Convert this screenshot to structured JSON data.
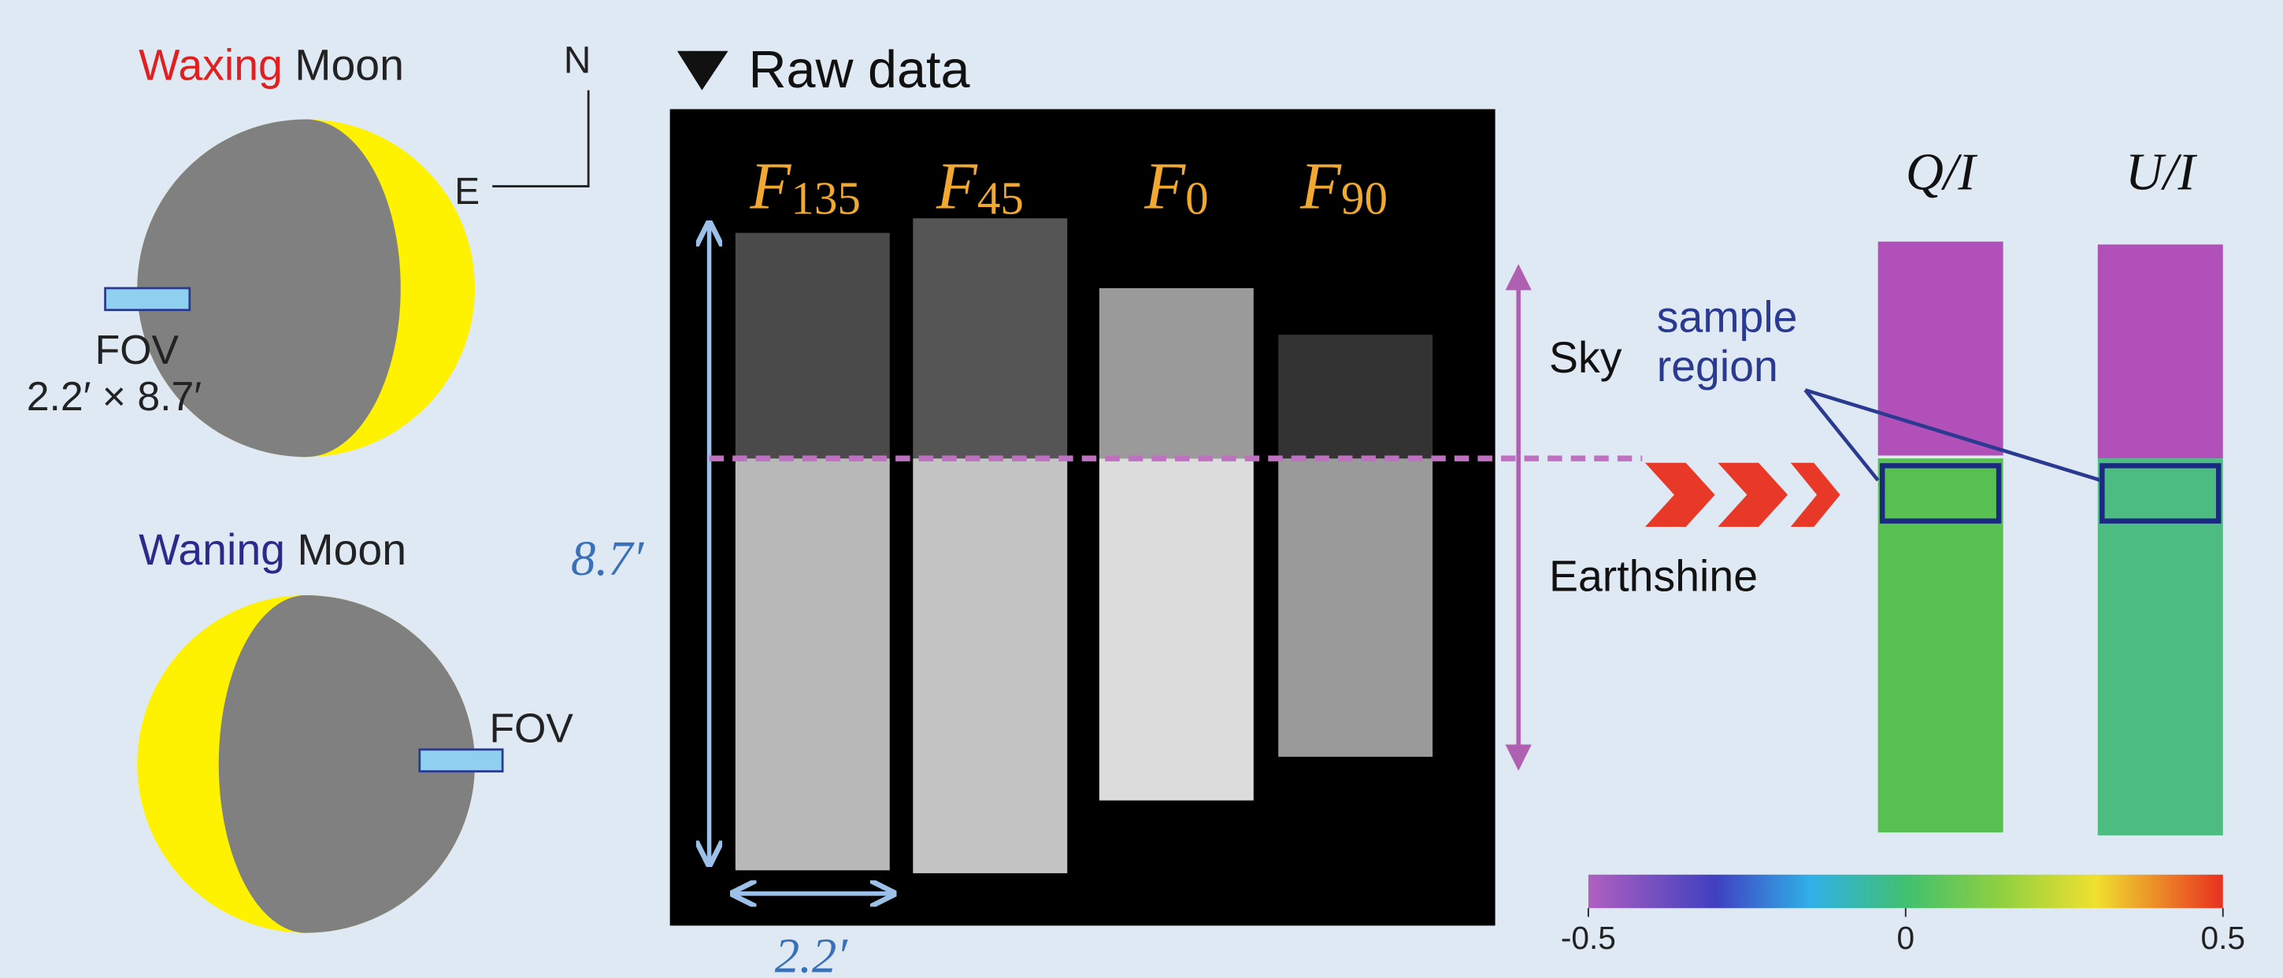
{
  "left_panel": {
    "compass": {
      "north": "N",
      "east": "E"
    },
    "waxing": {
      "phase": "Waxing",
      "moon": "Moon",
      "fov": "FOV",
      "fov_size": "2.2′ × 8.7′"
    },
    "waning": {
      "phase": "Waning",
      "moon": "Moon",
      "fov": "FOV"
    }
  },
  "raw_data": {
    "title": "Raw data",
    "filters": [
      {
        "letter": "F",
        "subscript": "135"
      },
      {
        "letter": "F",
        "subscript": "45"
      },
      {
        "letter": "F",
        "subscript": "0"
      },
      {
        "letter": "F",
        "subscript": "90"
      }
    ],
    "height_label": "8.7′",
    "width_label": "2.2′"
  },
  "annotations": {
    "sky": "Sky",
    "earthshine": "Earthshine",
    "sample_region": [
      "sample",
      "region"
    ]
  },
  "polarization": {
    "panels": [
      "Q/I",
      "U/I"
    ],
    "colorbar": {
      "lim": [
        -0.5,
        0.5
      ],
      "ticks": [
        -0.5,
        0,
        0.5
      ]
    }
  }
}
